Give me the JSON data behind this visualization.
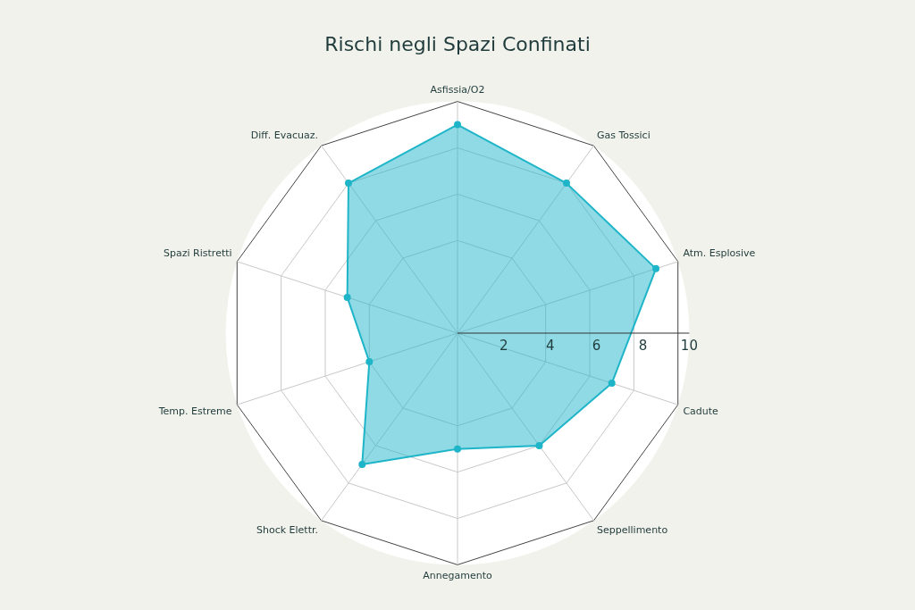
{
  "chart_data": {
    "type": "radar",
    "title": "Rischi negli Spazi Confinati",
    "categories": [
      "Asfissia/O2",
      "Gas Tossici",
      "Atm. Esplosive",
      "Cadute",
      "Seppellimento",
      "Annegamento",
      "Shock Elettr.",
      "Temp. Estreme",
      "Spazi Ristretti",
      "Diff. Evacuaz."
    ],
    "series": [
      {
        "color": "#1fb5c9",
        "values": [
          9,
          8,
          9,
          7,
          6,
          5,
          7,
          4,
          5,
          8
        ]
      }
    ],
    "ylim": [
      0,
      10
    ],
    "yticks": [
      2,
      4,
      6,
      8,
      10
    ],
    "grid": true,
    "legend": false,
    "marker": "circle"
  }
}
